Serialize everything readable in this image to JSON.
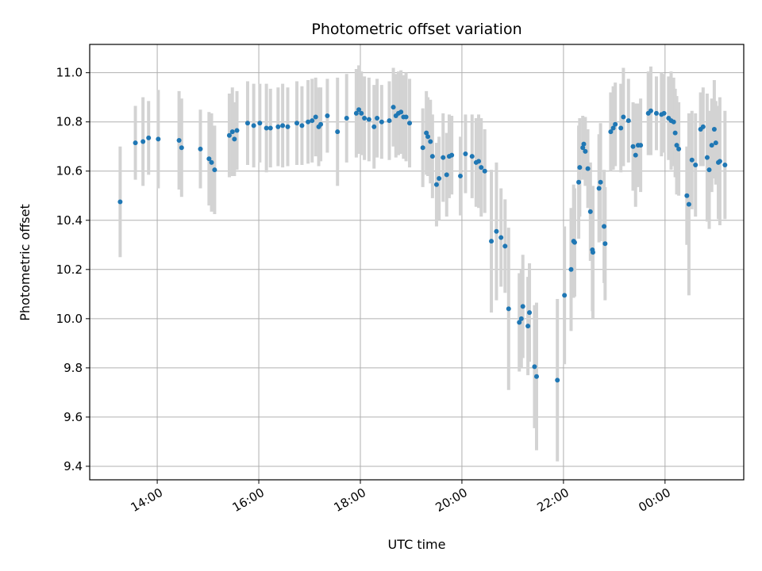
{
  "chart_data": {
    "type": "scatter",
    "title": "Photometric offset variation",
    "xlabel": "UTC time",
    "ylabel": "Photometric offset",
    "x_unit": "hours",
    "xlim": [
      12.67,
      25.55
    ],
    "ylim": [
      9.345,
      11.115
    ],
    "grid": true,
    "x_ticks": [
      {
        "value": 14,
        "label": "14:00"
      },
      {
        "value": 16,
        "label": "16:00"
      },
      {
        "value": 18,
        "label": "18:00"
      },
      {
        "value": 20,
        "label": "20:00"
      },
      {
        "value": 22,
        "label": "22:00"
      },
      {
        "value": 24,
        "label": "00:00"
      }
    ],
    "y_ticks": [
      {
        "value": 9.4,
        "label": "9.4"
      },
      {
        "value": 9.6,
        "label": "9.6"
      },
      {
        "value": 9.8,
        "label": "9.8"
      },
      {
        "value": 10.0,
        "label": "10.0"
      },
      {
        "value": 10.2,
        "label": "10.2"
      },
      {
        "value": 10.4,
        "label": "10.4"
      },
      {
        "value": 10.6,
        "label": "10.6"
      },
      {
        "value": 10.8,
        "label": "10.8"
      },
      {
        "value": 11.0,
        "label": "11.0"
      }
    ],
    "colors": {
      "point": "#1f77b4",
      "errorbar": "#d3d3d3",
      "grid": "#b0b0b0"
    },
    "points": [
      [
        13.27,
        10.475,
        0.225
      ],
      [
        13.57,
        10.715,
        0.15
      ],
      [
        13.72,
        10.72,
        0.18
      ],
      [
        13.83,
        10.735,
        0.15
      ],
      [
        14.02,
        10.73,
        0.2
      ],
      [
        14.43,
        10.725,
        0.2
      ],
      [
        14.48,
        10.695,
        0.2
      ],
      [
        14.85,
        10.69,
        0.16
      ],
      [
        15.02,
        10.65,
        0.19
      ],
      [
        15.07,
        10.635,
        0.2
      ],
      [
        15.13,
        10.605,
        0.18
      ],
      [
        15.42,
        10.745,
        0.17
      ],
      [
        15.48,
        10.76,
        0.18
      ],
      [
        15.52,
        10.73,
        0.15
      ],
      [
        15.57,
        10.765,
        0.16
      ],
      [
        15.78,
        10.795,
        0.17
      ],
      [
        15.9,
        10.785,
        0.17
      ],
      [
        16.02,
        10.795,
        0.16
      ],
      [
        16.15,
        10.775,
        0.18
      ],
      [
        16.23,
        10.775,
        0.16
      ],
      [
        16.38,
        10.78,
        0.16
      ],
      [
        16.47,
        10.785,
        0.17
      ],
      [
        16.57,
        10.78,
        0.16
      ],
      [
        16.75,
        10.795,
        0.17
      ],
      [
        16.85,
        10.785,
        0.16
      ],
      [
        16.97,
        10.8,
        0.17
      ],
      [
        17.05,
        10.805,
        0.17
      ],
      [
        17.12,
        10.82,
        0.16
      ],
      [
        17.18,
        10.78,
        0.16
      ],
      [
        17.22,
        10.79,
        0.15
      ],
      [
        17.35,
        10.825,
        0.15
      ],
      [
        17.55,
        10.76,
        0.22
      ],
      [
        17.73,
        10.815,
        0.18
      ],
      [
        17.92,
        10.835,
        0.18
      ],
      [
        17.97,
        10.85,
        0.18
      ],
      [
        18.02,
        10.835,
        0.17
      ],
      [
        18.08,
        10.815,
        0.17
      ],
      [
        18.17,
        10.81,
        0.17
      ],
      [
        18.27,
        10.78,
        0.17
      ],
      [
        18.33,
        10.815,
        0.16
      ],
      [
        18.42,
        10.8,
        0.15
      ],
      [
        18.57,
        10.805,
        0.16
      ],
      [
        18.65,
        10.86,
        0.16
      ],
      [
        18.7,
        10.825,
        0.17
      ],
      [
        18.75,
        10.835,
        0.17
      ],
      [
        18.8,
        10.84,
        0.17
      ],
      [
        18.85,
        10.82,
        0.17
      ],
      [
        18.9,
        10.82,
        0.18
      ],
      [
        18.97,
        10.795,
        0.18
      ],
      [
        19.23,
        10.695,
        0.16
      ],
      [
        19.3,
        10.755,
        0.17
      ],
      [
        19.33,
        10.74,
        0.16
      ],
      [
        19.38,
        10.72,
        0.17
      ],
      [
        19.42,
        10.66,
        0.17
      ],
      [
        19.5,
        10.545,
        0.17
      ],
      [
        19.55,
        10.57,
        0.17
      ],
      [
        19.63,
        10.655,
        0.18
      ],
      [
        19.7,
        10.585,
        0.17
      ],
      [
        19.75,
        10.66,
        0.17
      ],
      [
        19.8,
        10.665,
        0.16
      ],
      [
        19.97,
        10.58,
        0.16
      ],
      [
        20.07,
        10.67,
        0.16
      ],
      [
        20.2,
        10.66,
        0.17
      ],
      [
        20.28,
        10.635,
        0.18
      ],
      [
        20.33,
        10.64,
        0.19
      ],
      [
        20.38,
        10.615,
        0.2
      ],
      [
        20.45,
        10.6,
        0.17
      ],
      [
        20.58,
        10.315,
        0.29
      ],
      [
        20.68,
        10.355,
        0.28
      ],
      [
        20.77,
        10.33,
        0.2
      ],
      [
        20.85,
        10.295,
        0.19
      ],
      [
        20.92,
        10.04,
        0.33
      ],
      [
        21.13,
        9.985,
        0.2
      ],
      [
        21.17,
        10.0,
        0.2
      ],
      [
        21.2,
        10.05,
        0.21
      ],
      [
        21.3,
        9.97,
        0.2
      ],
      [
        21.33,
        10.025,
        0.2
      ],
      [
        21.43,
        9.805,
        0.25
      ],
      [
        21.47,
        9.765,
        0.3
      ],
      [
        21.88,
        9.75,
        0.33
      ],
      [
        22.02,
        10.095,
        0.28
      ],
      [
        22.15,
        10.2,
        0.25
      ],
      [
        22.2,
        10.315,
        0.23
      ],
      [
        22.22,
        10.31,
        0.22
      ],
      [
        22.3,
        10.555,
        0.23
      ],
      [
        22.32,
        10.615,
        0.2
      ],
      [
        22.38,
        10.695,
        0.13
      ],
      [
        22.4,
        10.71,
        0.11
      ],
      [
        22.43,
        10.68,
        0.14
      ],
      [
        22.48,
        10.61,
        0.16
      ],
      [
        22.53,
        10.435,
        0.2
      ],
      [
        22.57,
        10.28,
        0.25
      ],
      [
        22.58,
        10.27,
        0.27
      ],
      [
        22.7,
        10.53,
        0.22
      ],
      [
        22.73,
        10.555,
        0.24
      ],
      [
        22.8,
        10.375,
        0.23
      ],
      [
        22.82,
        10.305,
        0.23
      ],
      [
        22.93,
        10.76,
        0.16
      ],
      [
        22.98,
        10.775,
        0.17
      ],
      [
        23.02,
        10.79,
        0.17
      ],
      [
        23.13,
        10.775,
        0.18
      ],
      [
        23.18,
        10.82,
        0.2
      ],
      [
        23.28,
        10.805,
        0.17
      ],
      [
        23.37,
        10.7,
        0.18
      ],
      [
        23.42,
        10.665,
        0.21
      ],
      [
        23.47,
        10.705,
        0.17
      ],
      [
        23.52,
        10.705,
        0.19
      ],
      [
        23.67,
        10.835,
        0.17
      ],
      [
        23.72,
        10.845,
        0.18
      ],
      [
        23.83,
        10.835,
        0.15
      ],
      [
        23.93,
        10.83,
        0.17
      ],
      [
        23.98,
        10.835,
        0.16
      ],
      [
        24.07,
        10.815,
        0.17
      ],
      [
        24.12,
        10.805,
        0.2
      ],
      [
        24.17,
        10.8,
        0.18
      ],
      [
        24.2,
        10.755,
        0.18
      ],
      [
        24.23,
        10.705,
        0.2
      ],
      [
        24.27,
        10.69,
        0.19
      ],
      [
        24.43,
        10.5,
        0.2
      ],
      [
        24.47,
        10.465,
        0.37
      ],
      [
        24.53,
        10.645,
        0.2
      ],
      [
        24.6,
        10.625,
        0.21
      ],
      [
        24.7,
        10.77,
        0.15
      ],
      [
        24.75,
        10.78,
        0.16
      ],
      [
        24.83,
        10.655,
        0.26
      ],
      [
        24.87,
        10.605,
        0.24
      ],
      [
        24.92,
        10.705,
        0.19
      ],
      [
        24.97,
        10.77,
        0.2
      ],
      [
        25.0,
        10.715,
        0.17
      ],
      [
        25.05,
        10.635,
        0.23
      ],
      [
        25.08,
        10.64,
        0.26
      ],
      [
        25.18,
        10.625,
        0.22
      ]
    ]
  }
}
